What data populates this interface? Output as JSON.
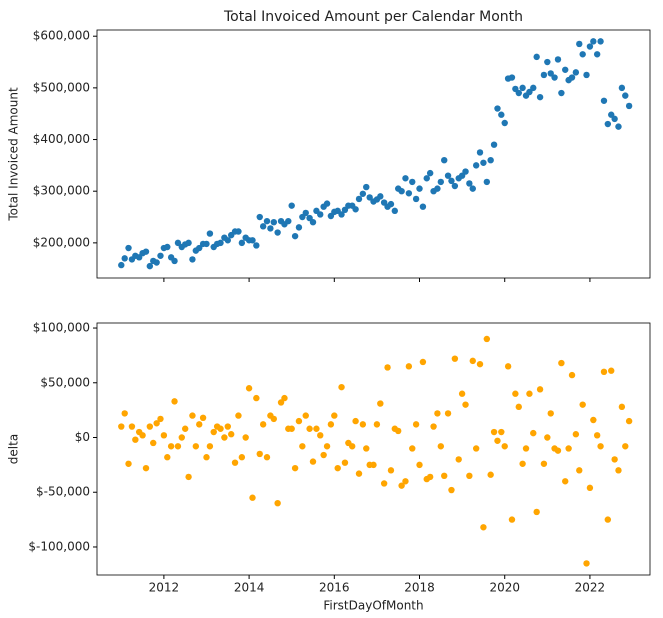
{
  "chart_data": [
    {
      "type": "scatter",
      "title": "Total Invoiced Amount per Calendar Month",
      "ylabel": "Total Invoiced Amount",
      "color": "#1f77b4",
      "x": [
        2011.0,
        2011.08,
        2011.17,
        2011.25,
        2011.33,
        2011.42,
        2011.5,
        2011.58,
        2011.67,
        2011.75,
        2011.83,
        2011.92,
        2012.0,
        2012.08,
        2012.17,
        2012.25,
        2012.33,
        2012.42,
        2012.5,
        2012.58,
        2012.67,
        2012.75,
        2012.83,
        2012.92,
        2013.0,
        2013.08,
        2013.17,
        2013.25,
        2013.33,
        2013.42,
        2013.5,
        2013.58,
        2013.67,
        2013.75,
        2013.83,
        2013.92,
        2014.0,
        2014.08,
        2014.17,
        2014.25,
        2014.33,
        2014.42,
        2014.5,
        2014.58,
        2014.67,
        2014.75,
        2014.83,
        2014.92,
        2015.0,
        2015.08,
        2015.17,
        2015.25,
        2015.33,
        2015.42,
        2015.5,
        2015.58,
        2015.67,
        2015.75,
        2015.83,
        2015.92,
        2016.0,
        2016.08,
        2016.17,
        2016.25,
        2016.33,
        2016.42,
        2016.5,
        2016.58,
        2016.67,
        2016.75,
        2016.83,
        2016.92,
        2017.0,
        2017.08,
        2017.17,
        2017.25,
        2017.33,
        2017.42,
        2017.5,
        2017.58,
        2017.67,
        2017.75,
        2017.83,
        2017.92,
        2018.0,
        2018.08,
        2018.17,
        2018.25,
        2018.33,
        2018.42,
        2018.5,
        2018.58,
        2018.67,
        2018.75,
        2018.83,
        2018.92,
        2019.0,
        2019.08,
        2019.17,
        2019.25,
        2019.33,
        2019.42,
        2019.5,
        2019.58,
        2019.67,
        2019.75,
        2019.83,
        2019.92,
        2020.0,
        2020.08,
        2020.17,
        2020.25,
        2020.33,
        2020.42,
        2020.5,
        2020.58,
        2020.67,
        2020.75,
        2020.83,
        2020.92,
        2021.0,
        2021.08,
        2021.17,
        2021.25,
        2021.33,
        2021.42,
        2021.5,
        2021.58,
        2021.67,
        2021.75,
        2021.83,
        2021.92,
        2022.0,
        2022.08,
        2022.17,
        2022.25,
        2022.33,
        2022.42,
        2022.5,
        2022.58,
        2022.67,
        2022.75,
        2022.83,
        2022.92
      ],
      "values": [
        157000,
        170000,
        190000,
        168000,
        175000,
        172000,
        180000,
        183000,
        155000,
        165000,
        162000,
        175000,
        190000,
        192000,
        172000,
        165000,
        200000,
        192000,
        197000,
        200000,
        168000,
        185000,
        190000,
        198000,
        198000,
        218000,
        192000,
        198000,
        200000,
        210000,
        205000,
        215000,
        222000,
        222000,
        200000,
        210000,
        205000,
        205000,
        195000,
        250000,
        232000,
        242000,
        228000,
        240000,
        220000,
        242000,
        236000,
        242000,
        272000,
        213000,
        230000,
        250000,
        258000,
        248000,
        240000,
        262000,
        255000,
        270000,
        276000,
        252000,
        260000,
        262000,
        255000,
        264000,
        272000,
        272000,
        265000,
        285000,
        295000,
        308000,
        288000,
        280000,
        284000,
        290000,
        278000,
        270000,
        275000,
        262000,
        305000,
        300000,
        325000,
        296000,
        318000,
        285000,
        305000,
        270000,
        325000,
        335000,
        300000,
        305000,
        318000,
        360000,
        330000,
        320000,
        310000,
        325000,
        330000,
        338000,
        315000,
        305000,
        350000,
        375000,
        355000,
        318000,
        360000,
        390000,
        460000,
        448000,
        432000,
        518000,
        520000,
        498000,
        490000,
        500000,
        485000,
        492000,
        500000,
        560000,
        482000,
        525000,
        550000,
        528000,
        520000,
        555000,
        490000,
        535000,
        515000,
        520000,
        530000,
        585000,
        565000,
        525000,
        580000,
        590000,
        565000,
        590000,
        475000,
        430000,
        448000,
        440000,
        425000,
        500000,
        485000,
        465000
      ],
      "xlim": [
        2010.43,
        2023.41
      ],
      "ylim": [
        132000,
        612000
      ],
      "yticks": [
        {
          "value": 200000,
          "label": "$200,000"
        },
        {
          "value": 300000,
          "label": "$300,000"
        },
        {
          "value": 400000,
          "label": "$400,000"
        },
        {
          "value": 500000,
          "label": "$500,000"
        },
        {
          "value": 600000,
          "label": "$600,000"
        }
      ]
    },
    {
      "type": "scatter",
      "xlabel": "FirstDayOfMonth",
      "ylabel": "delta",
      "color": "#ffa500",
      "x": [
        2011.0,
        2011.08,
        2011.17,
        2011.25,
        2011.33,
        2011.42,
        2011.5,
        2011.58,
        2011.67,
        2011.75,
        2011.83,
        2011.92,
        2012.0,
        2012.08,
        2012.17,
        2012.25,
        2012.33,
        2012.42,
        2012.5,
        2012.58,
        2012.67,
        2012.75,
        2012.83,
        2012.92,
        2013.0,
        2013.08,
        2013.17,
        2013.25,
        2013.33,
        2013.42,
        2013.5,
        2013.58,
        2013.67,
        2013.75,
        2013.83,
        2013.92,
        2014.0,
        2014.08,
        2014.17,
        2014.25,
        2014.33,
        2014.42,
        2014.5,
        2014.58,
        2014.67,
        2014.75,
        2014.83,
        2014.92,
        2015.0,
        2015.08,
        2015.17,
        2015.25,
        2015.33,
        2015.42,
        2015.5,
        2015.58,
        2015.67,
        2015.75,
        2015.83,
        2015.92,
        2016.0,
        2016.08,
        2016.17,
        2016.25,
        2016.33,
        2016.42,
        2016.5,
        2016.58,
        2016.67,
        2016.75,
        2016.83,
        2016.92,
        2017.0,
        2017.08,
        2017.17,
        2017.25,
        2017.33,
        2017.42,
        2017.5,
        2017.58,
        2017.67,
        2017.75,
        2017.83,
        2017.92,
        2018.0,
        2018.08,
        2018.17,
        2018.25,
        2018.33,
        2018.42,
        2018.5,
        2018.58,
        2018.67,
        2018.75,
        2018.83,
        2018.92,
        2019.0,
        2019.08,
        2019.17,
        2019.25,
        2019.33,
        2019.42,
        2019.5,
        2019.58,
        2019.67,
        2019.75,
        2019.83,
        2019.92,
        2020.0,
        2020.08,
        2020.17,
        2020.25,
        2020.33,
        2020.42,
        2020.5,
        2020.58,
        2020.67,
        2020.75,
        2020.83,
        2020.92,
        2021.0,
        2021.08,
        2021.17,
        2021.25,
        2021.33,
        2021.42,
        2021.5,
        2021.58,
        2021.67,
        2021.75,
        2021.83,
        2021.92,
        2022.0,
        2022.08,
        2022.17,
        2022.25,
        2022.33,
        2022.42,
        2022.5,
        2022.58,
        2022.67,
        2022.75,
        2022.83,
        2022.92
      ],
      "values": [
        10000,
        22000,
        -24000,
        10000,
        -2000,
        5000,
        2000,
        -28000,
        10000,
        -5000,
        13000,
        17000,
        2000,
        -18000,
        -8000,
        33000,
        -8000,
        0,
        8000,
        -36000,
        20000,
        -8000,
        12000,
        18000,
        -18000,
        -8000,
        5000,
        10000,
        8000,
        0,
        10000,
        3000,
        -23000,
        20000,
        -18000,
        0,
        45000,
        -55000,
        36000,
        -15000,
        12000,
        -18000,
        20000,
        17000,
        -60000,
        32000,
        36000,
        8000,
        8000,
        -28000,
        15000,
        -8000,
        20000,
        8000,
        -22000,
        8000,
        2000,
        -16000,
        -8000,
        12000,
        20000,
        -28000,
        46000,
        -23000,
        -5000,
        -8000,
        15000,
        -33000,
        12000,
        -10000,
        -25000,
        -25000,
        12000,
        31000,
        -42000,
        64000,
        -30000,
        8000,
        6000,
        -44000,
        -40000,
        65000,
        -10000,
        12000,
        -25000,
        69000,
        -38000,
        -36000,
        10000,
        22000,
        -8000,
        -35000,
        22000,
        -48000,
        72000,
        -20000,
        40000,
        30000,
        -35000,
        70000,
        -10000,
        67000,
        -82000,
        90000,
        -34000,
        5000,
        -3000,
        5000,
        -8000,
        65000,
        -75000,
        40000,
        28000,
        -24000,
        -10000,
        40000,
        4000,
        -68000,
        44000,
        -24000,
        0,
        22000,
        -10000,
        -12000,
        68000,
        -40000,
        -10000,
        57000,
        3000,
        -30000,
        30000,
        -115000,
        -46000,
        16000,
        2000,
        -8000,
        60000,
        -75000,
        61000,
        -20000,
        -30000,
        28000,
        -8000,
        15000
      ],
      "xlim": [
        2010.43,
        2023.41
      ],
      "ylim": [
        -125600,
        104600
      ],
      "xticks": [
        2012,
        2014,
        2016,
        2018,
        2020,
        2022
      ],
      "yticks": [
        {
          "value": -100000,
          "label": "$-100,000"
        },
        {
          "value": -50000,
          "label": "$-50,000"
        },
        {
          "value": 0,
          "label": "$0"
        },
        {
          "value": 50000,
          "label": "$50,000"
        },
        {
          "value": 100000,
          "label": "$100,000"
        }
      ]
    }
  ]
}
